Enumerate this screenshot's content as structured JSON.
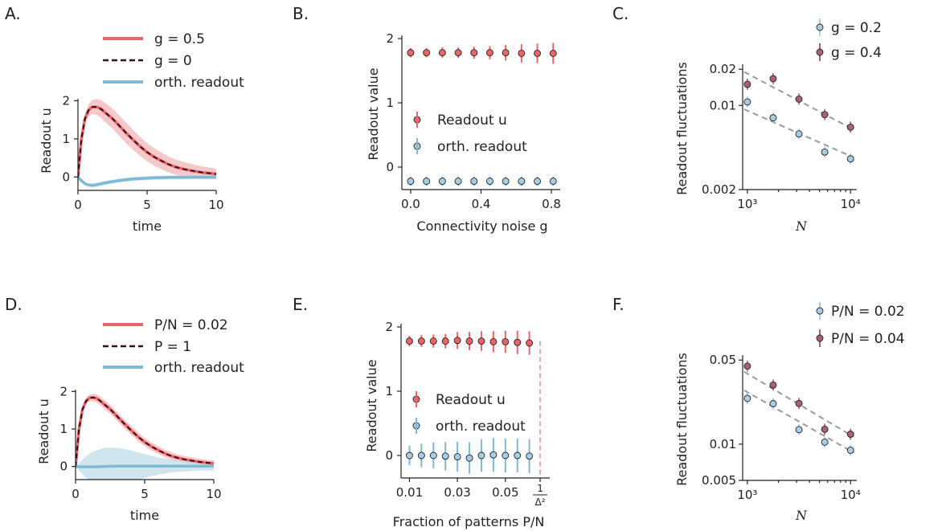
{
  "figure": {
    "panel_letters": [
      "A.",
      "B.",
      "C.",
      "D.",
      "E.",
      "F."
    ]
  },
  "colors": {
    "red": "#e8666a",
    "red_band": "#f2b7b7",
    "blue": "#7fb9d6",
    "blue_band": "#c2dcea",
    "dark": "#3a0f18",
    "purple": "#a9607f",
    "lightblue": "#a9cde3",
    "dashed_fit": "#9a9a9a",
    "vline": "#d9a6c9"
  },
  "chart_data": [
    {
      "panel": "A.",
      "type": "line",
      "xlabel": "time",
      "ylabel": "Readout u",
      "xlim": [
        0,
        10
      ],
      "ylim": [
        -0.35,
        2.05
      ],
      "xticks": [
        "0",
        "5",
        "10"
      ],
      "yticks": [
        "0",
        "1",
        "2"
      ],
      "legend": [
        "g = 0.5",
        "g = 0",
        "orth. readout"
      ],
      "x": [
        0,
        0.25,
        0.5,
        0.75,
        1,
        1.25,
        1.5,
        1.75,
        2,
        2.5,
        3,
        3.5,
        4,
        4.5,
        5,
        5.5,
        6,
        6.5,
        7,
        7.5,
        8,
        8.5,
        9,
        9.5,
        10
      ],
      "series": [
        {
          "name": "g = 0.5",
          "style": "band",
          "values": [
            0,
            1.0,
            1.52,
            1.74,
            1.83,
            1.84,
            1.82,
            1.76,
            1.68,
            1.53,
            1.34,
            1.15,
            0.97,
            0.8,
            0.65,
            0.53,
            0.43,
            0.34,
            0.27,
            0.22,
            0.18,
            0.15,
            0.12,
            0.1,
            0.08
          ],
          "band": [
            0,
            0.08,
            0.12,
            0.16,
            0.18,
            0.2,
            0.22,
            0.24,
            0.25,
            0.26,
            0.27,
            0.27,
            0.26,
            0.25,
            0.24,
            0.23,
            0.22,
            0.21,
            0.2,
            0.19,
            0.18,
            0.17,
            0.16,
            0.15,
            0.14
          ]
        },
        {
          "name": "g = 0",
          "style": "dashed",
          "values": [
            0,
            1.0,
            1.52,
            1.74,
            1.83,
            1.84,
            1.82,
            1.76,
            1.68,
            1.53,
            1.34,
            1.15,
            0.97,
            0.8,
            0.65,
            0.53,
            0.43,
            0.34,
            0.27,
            0.22,
            0.18,
            0.15,
            0.12,
            0.1,
            0.08
          ]
        },
        {
          "name": "orth. readout",
          "style": "band",
          "values": [
            0,
            -0.1,
            -0.17,
            -0.21,
            -0.22,
            -0.21,
            -0.19,
            -0.17,
            -0.15,
            -0.12,
            -0.09,
            -0.07,
            -0.05,
            -0.04,
            -0.03,
            -0.02,
            -0.015,
            -0.01,
            -0.008,
            -0.006,
            -0.005,
            -0.004,
            -0.003,
            -0.002,
            -0.001
          ],
          "band": [
            0,
            0.02,
            0.03,
            0.04,
            0.05,
            0.05,
            0.05,
            0.05,
            0.05,
            0.05,
            0.05,
            0.05,
            0.05,
            0.05,
            0.05,
            0.05,
            0.05,
            0.05,
            0.05,
            0.05,
            0.05,
            0.05,
            0.05,
            0.05,
            0.05
          ]
        }
      ]
    },
    {
      "panel": "B.",
      "type": "scatter",
      "xlabel": "Connectivity noise g",
      "ylabel": "Readout value",
      "xlim": [
        -0.05,
        0.85
      ],
      "ylim": [
        -0.35,
        2.05
      ],
      "xticks": [
        "0.0",
        "0.4",
        "0.8"
      ],
      "yticks": [
        "0",
        "1",
        "2"
      ],
      "legend": [
        "Readout u",
        "orth. readout"
      ],
      "x": [
        0,
        0.09,
        0.18,
        0.27,
        0.36,
        0.45,
        0.54,
        0.63,
        0.72,
        0.81
      ],
      "series": [
        {
          "name": "Readout u",
          "values": [
            1.78,
            1.78,
            1.78,
            1.78,
            1.78,
            1.78,
            1.78,
            1.77,
            1.77,
            1.77
          ],
          "err": [
            0.01,
            0.01,
            0.02,
            0.02,
            0.03,
            0.04,
            0.06,
            0.08,
            0.09,
            0.1
          ]
        },
        {
          "name": "orth. readout",
          "values": [
            -0.22,
            -0.22,
            -0.22,
            -0.22,
            -0.22,
            -0.22,
            -0.22,
            -0.22,
            -0.22,
            -0.22
          ],
          "err": [
            0.01,
            0.01,
            0.01,
            0.01,
            0.01,
            0.01,
            0.01,
            0.01,
            0.01,
            0.01
          ]
        }
      ]
    },
    {
      "panel": "C.",
      "type": "scatter",
      "scale": "log-log",
      "xlabel": "N",
      "ylabel": "Readout fluctuations",
      "xlim": [
        900,
        11500
      ],
      "ylim": [
        0.002,
        0.022
      ],
      "xticks": [
        "10³",
        "10⁴"
      ],
      "yticks": [
        "0.02",
        "0.01",
        "0.002"
      ],
      "legend": [
        "g = 0.2",
        "g = 0.4"
      ],
      "x": [
        1000,
        1778,
        3162,
        5623,
        10000
      ],
      "series": [
        {
          "name": "g = 0.2",
          "values": [
            0.0107,
            0.0079,
            0.0058,
            0.0041,
            0.0036
          ],
          "fit": [
            0.0093,
            0.0037
          ]
        },
        {
          "name": "g = 0.4",
          "values": [
            0.015,
            0.0167,
            0.0113,
            0.0084,
            0.0066
          ],
          "fit": [
            0.019,
            0.0063
          ]
        }
      ]
    },
    {
      "panel": "D.",
      "type": "line",
      "xlabel": "time",
      "ylabel": "Readout u",
      "xlim": [
        0,
        10
      ],
      "ylim": [
        -0.35,
        2.05
      ],
      "xticks": [
        "0",
        "5",
        "10"
      ],
      "yticks": [
        "0",
        "1",
        "2"
      ],
      "legend": [
        "P/N = 0.02",
        "P = 1",
        "orth. readout"
      ],
      "x": [
        0,
        0.25,
        0.5,
        0.75,
        1,
        1.25,
        1.5,
        1.75,
        2,
        2.5,
        3,
        3.5,
        4,
        4.5,
        5,
        5.5,
        6,
        6.5,
        7,
        7.5,
        8,
        8.5,
        9,
        9.5,
        10
      ],
      "series": [
        {
          "name": "P/N = 0.02",
          "style": "band",
          "values": [
            0,
            1.0,
            1.52,
            1.74,
            1.83,
            1.84,
            1.82,
            1.76,
            1.68,
            1.53,
            1.34,
            1.15,
            0.97,
            0.8,
            0.65,
            0.53,
            0.43,
            0.34,
            0.27,
            0.22,
            0.18,
            0.15,
            0.12,
            0.1,
            0.08
          ],
          "band": [
            0,
            0.04,
            0.06,
            0.08,
            0.09,
            0.1,
            0.11,
            0.12,
            0.12,
            0.12,
            0.12,
            0.12,
            0.12,
            0.12,
            0.11,
            0.11,
            0.1,
            0.1,
            0.1,
            0.09,
            0.09,
            0.09,
            0.08,
            0.08,
            0.08
          ]
        },
        {
          "name": "P = 1",
          "style": "dashed",
          "values": [
            0,
            1.0,
            1.52,
            1.74,
            1.83,
            1.84,
            1.82,
            1.76,
            1.68,
            1.53,
            1.34,
            1.15,
            0.97,
            0.8,
            0.65,
            0.53,
            0.43,
            0.34,
            0.27,
            0.22,
            0.18,
            0.15,
            0.12,
            0.1,
            0.08
          ]
        },
        {
          "name": "orth. readout",
          "style": "band",
          "values": [
            0,
            -0.01,
            -0.01,
            -0.01,
            -0.01,
            -0.01,
            -0.01,
            -0.005,
            0,
            0.005,
            0.01,
            0.01,
            0.01,
            0.01,
            0.01,
            0.01,
            0.01,
            0.01,
            0.01,
            0.01,
            0.01,
            0.01,
            0.01,
            0.01,
            0.01
          ],
          "band": [
            0,
            0.1,
            0.2,
            0.28,
            0.35,
            0.4,
            0.44,
            0.47,
            0.49,
            0.5,
            0.49,
            0.46,
            0.42,
            0.37,
            0.32,
            0.27,
            0.23,
            0.2,
            0.17,
            0.15,
            0.14,
            0.13,
            0.12,
            0.12,
            0.12
          ]
        }
      ]
    },
    {
      "panel": "E.",
      "type": "scatter",
      "xlabel": "Fraction of patterns P/N",
      "ylabel": "Readout value",
      "xlim": [
        0.0065,
        0.0685
      ],
      "ylim": [
        -0.35,
        2.05
      ],
      "xticks": [
        "0.01",
        "0.03",
        "0.05",
        "1/Δ²"
      ],
      "yticks": [
        "0",
        "1",
        "2"
      ],
      "legend": [
        "Readout u",
        "orth. readout"
      ],
      "x": [
        0.01,
        0.015,
        0.02,
        0.025,
        0.03,
        0.035,
        0.04,
        0.045,
        0.05,
        0.055,
        0.06
      ],
      "series": [
        {
          "name": "Readout u",
          "values": [
            1.78,
            1.78,
            1.78,
            1.78,
            1.79,
            1.78,
            1.78,
            1.77,
            1.77,
            1.76,
            1.75
          ],
          "err": [
            0.02,
            0.03,
            0.04,
            0.05,
            0.07,
            0.08,
            0.09,
            0.1,
            0.11,
            0.12,
            0.12
          ]
        },
        {
          "name": "orth. readout",
          "values": [
            0,
            0,
            0,
            -0.01,
            -0.02,
            -0.04,
            0,
            0.01,
            0,
            0,
            -0.01
          ],
          "err": [
            0.09,
            0.12,
            0.14,
            0.16,
            0.17,
            0.18,
            0.19,
            0.2,
            0.2,
            0.2,
            0.2
          ]
        }
      ],
      "vline_x": 0.0645
    },
    {
      "panel": "F.",
      "type": "scatter",
      "scale": "log-log",
      "xlabel": "N",
      "ylabel": "Readout fluctuations",
      "xlim": [
        900,
        11500
      ],
      "ylim": [
        0.005,
        0.055
      ],
      "xticks": [
        "10³",
        "10⁴"
      ],
      "yticks": [
        "0.05",
        "0.01",
        "0.005"
      ],
      "legend": [
        "P/N = 0.02",
        "P/N = 0.04"
      ],
      "x": [
        1000,
        1778,
        3162,
        5623,
        10000
      ],
      "series": [
        {
          "name": "P/N = 0.02",
          "values": [
            0.024,
            0.0217,
            0.0132,
            0.0104,
            0.0089
          ],
          "fit": [
            0.028,
            0.0085
          ]
        },
        {
          "name": "P/N = 0.04",
          "values": [
            0.0445,
            0.031,
            0.0218,
            0.0133,
            0.0121
          ],
          "fit": [
            0.04,
            0.0115
          ]
        }
      ]
    }
  ]
}
